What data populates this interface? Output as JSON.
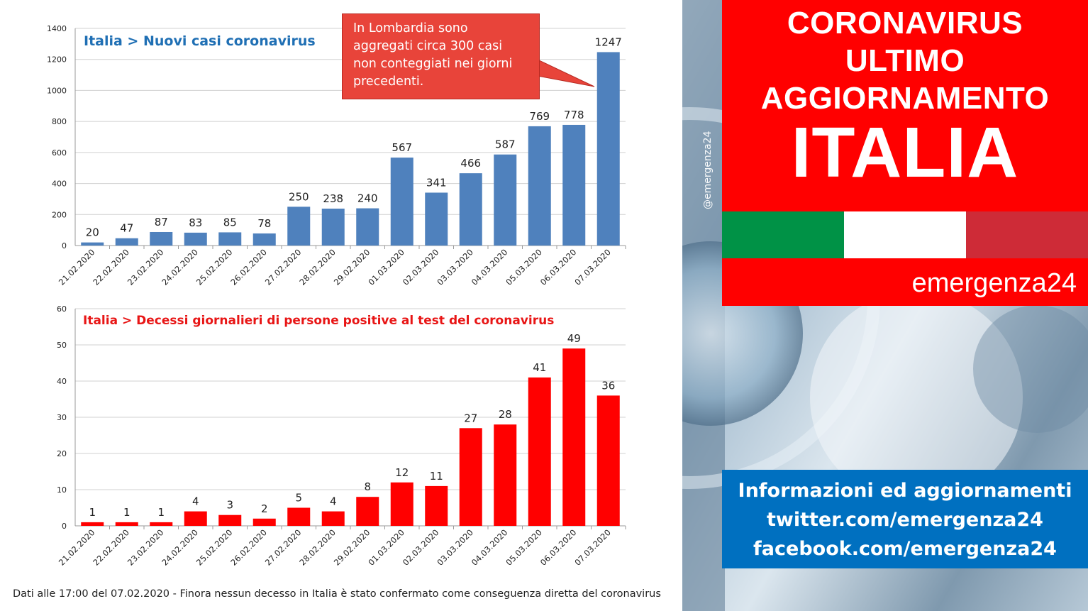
{
  "chart_data": [
    {
      "type": "bar",
      "title": "Italia > Nuovi casi coronavirus",
      "categories": [
        "21.02.2020",
        "22.02.2020",
        "23.02.2020",
        "24.02.2020",
        "25.02.2020",
        "26.02.2020",
        "27.02.2020",
        "28.02.2020",
        "29.02.2020",
        "01.03.2020",
        "02.03.2020",
        "03.03.2020",
        "04.03.2020",
        "05.03.2020",
        "06.03.2020",
        "07.03.2020"
      ],
      "values": [
        20,
        47,
        87,
        83,
        85,
        78,
        250,
        238,
        240,
        567,
        341,
        466,
        587,
        769,
        778,
        1247
      ],
      "ylim": [
        0,
        1400
      ],
      "yticks": [
        0,
        200,
        400,
        600,
        800,
        1000,
        1200,
        1400
      ],
      "color": "#4f81bd",
      "grid": true,
      "annotation": "In Lombardia sono aggregati circa 300 casi non conteggiati nei giorni precedenti."
    },
    {
      "type": "bar",
      "title": "Italia > Decessi giornalieri di persone positive al test del coronavirus",
      "categories": [
        "21.02.2020",
        "22.02.2020",
        "23.02.2020",
        "24.02.2020",
        "25.02.2020",
        "26.02.2020",
        "27.02.2020",
        "28.02.2020",
        "29.02.2020",
        "01.03.2020",
        "02.03.2020",
        "03.03.2020",
        "04.03.2020",
        "05.03.2020",
        "06.03.2020",
        "07.03.2020"
      ],
      "values": [
        1,
        1,
        1,
        4,
        3,
        2,
        5,
        4,
        8,
        12,
        11,
        27,
        28,
        41,
        49,
        36
      ],
      "ylim": [
        0,
        60
      ],
      "yticks": [
        0,
        10,
        20,
        30,
        40,
        50,
        60
      ],
      "color": "#ff0000",
      "grid": true
    }
  ],
  "footer": "Dati alle 17:00 del 07.02.2020 - Finora nessun decesso in Italia è stato confermato come conseguenza diretta del coronavirus",
  "watermark": "@emergenza24",
  "headline": {
    "line1": "CORONAVIRUS",
    "line2": "ULTIMO",
    "line3": "AGGIORNAMENTO",
    "country": "ITALIA"
  },
  "flag_colors": [
    "#009246",
    "#ffffff",
    "#ce2b37"
  ],
  "brand": "emergenza24",
  "info": {
    "line1": "Informazioni ed aggiornamenti",
    "line2": "twitter.com/emergenza24",
    "line3": "facebook.com/emergenza24"
  },
  "colors": {
    "headline_red": "#ff0000",
    "info_blue": "#0070c0"
  }
}
